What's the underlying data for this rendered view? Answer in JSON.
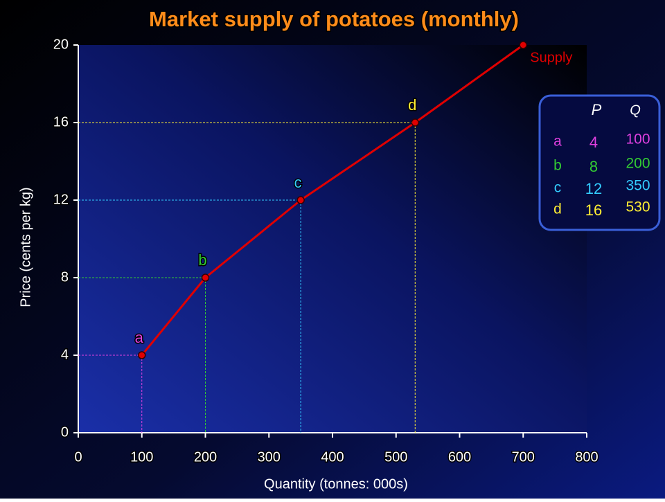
{
  "chart_data": {
    "type": "line",
    "title": "Market supply of potatoes (monthly)",
    "x_label": "Quantity (tonnes: 000s)",
    "y_label": "Price (cents per kg)",
    "series_label": "Supply",
    "color": "#e00000",
    "x": [
      100,
      200,
      350,
      530,
      700
    ],
    "y": [
      4,
      8,
      12,
      16,
      20
    ],
    "point_labels": [
      "a",
      "b",
      "c",
      "d",
      null
    ],
    "point_colors": [
      "#e040e0",
      "#33cc33",
      "#33ccff",
      "#ffee33",
      null
    ],
    "xlim": [
      0,
      800
    ],
    "xticks": [
      0,
      100,
      200,
      300,
      400,
      500,
      600,
      700,
      800
    ],
    "ylim": [
      0,
      20
    ],
    "yticks": [
      0,
      4,
      8,
      12,
      16,
      20
    ],
    "table_headers": [
      "P",
      "Q"
    ]
  }
}
